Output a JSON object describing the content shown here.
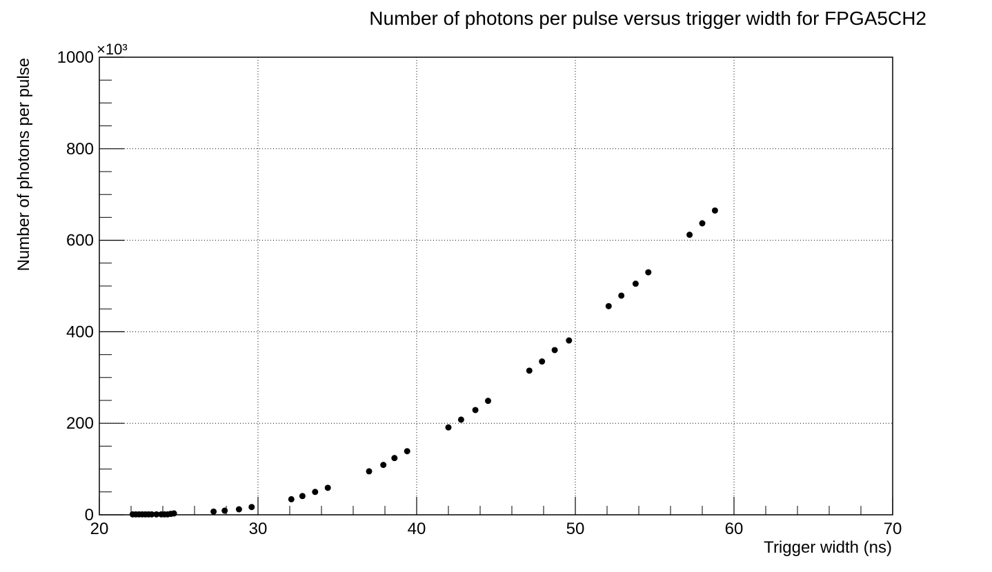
{
  "chart_data": {
    "type": "scatter",
    "title": "Number of photons per pulse versus trigger width for FPGA5CH2",
    "xlabel": "Trigger width (ns)",
    "ylabel": "Number of photons per pulse",
    "y_multiplier_label": "×10³",
    "xlim": [
      20,
      70
    ],
    "ylim": [
      0,
      1000
    ],
    "x_ticks": [
      "20",
      "30",
      "40",
      "50",
      "60",
      "70"
    ],
    "y_ticks": [
      "0",
      "200",
      "400",
      "600",
      "800",
      "1000"
    ],
    "grid": true,
    "marker_color": "#000000",
    "series": [
      {
        "x": [
          22.1,
          22.3,
          22.5,
          22.7,
          22.9,
          23.1,
          23.3,
          23.6,
          23.9,
          24.1,
          24.3,
          24.5,
          24.7,
          27.2,
          27.9,
          28.8,
          29.6,
          32.1,
          32.8,
          33.6,
          34.4,
          37.0,
          37.9,
          38.6,
          39.4,
          42.0,
          42.8,
          43.7,
          44.5,
          47.1,
          47.9,
          48.7,
          49.6,
          52.1,
          52.9,
          53.8,
          54.6,
          57.2,
          58.0,
          58.8
        ],
        "y": [
          1,
          1,
          1,
          1,
          1,
          1,
          1,
          1,
          1,
          1,
          1,
          2,
          3,
          7,
          9,
          12,
          17,
          34,
          41,
          50,
          59,
          95,
          109,
          124,
          139,
          191,
          208,
          229,
          249,
          315,
          335,
          360,
          381,
          456,
          479,
          505,
          530,
          612,
          637,
          665
        ]
      }
    ]
  }
}
